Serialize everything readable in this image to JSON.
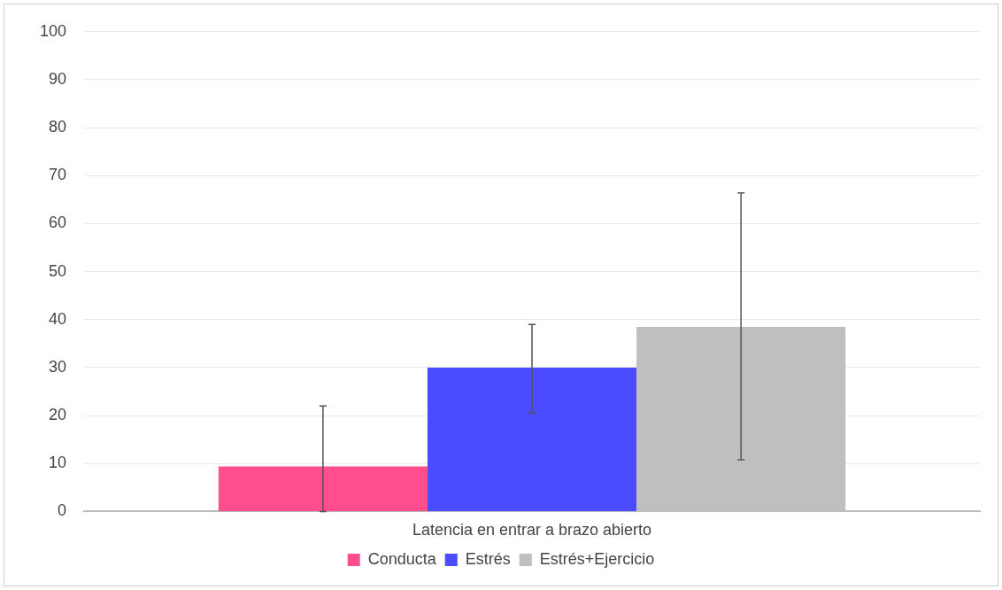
{
  "chart_data": {
    "type": "bar",
    "categories": [
      "Latencia en entrar a brazo abierto"
    ],
    "series": [
      {
        "name": "Conducta",
        "color": "#ff4d8d",
        "values": [
          9.4
        ],
        "errors": [
          [
            0,
            22
          ]
        ]
      },
      {
        "name": "Estrés",
        "color": "#4b4bff",
        "values": [
          30
        ],
        "errors": [
          [
            20.6,
            39
          ]
        ]
      },
      {
        "name": "Estrés+Ejercicio",
        "color": "#bfbfbf",
        "values": [
          38.5
        ],
        "errors": [
          [
            10.8,
            66.4
          ]
        ]
      }
    ],
    "ylim": [
      0,
      100
    ],
    "yticks": [
      0,
      10,
      20,
      30,
      40,
      50,
      60,
      70,
      80,
      90,
      100
    ],
    "grid": "y",
    "legend": "bottom"
  }
}
